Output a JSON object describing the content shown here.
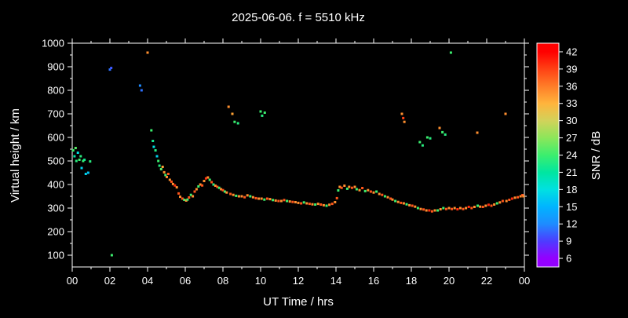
{
  "title": "2025-06-06. f = 5510 kHz",
  "chart_data": {
    "type": "scatter",
    "xlabel": "UT Time / hrs",
    "ylabel": "Virtual height / km",
    "xlim": [
      0,
      24
    ],
    "ylim": [
      50,
      1000
    ],
    "background": "#000000",
    "axis_color": "#ffffff",
    "x_ticks": [
      {
        "v": 0,
        "label": "00"
      },
      {
        "v": 2,
        "label": "02"
      },
      {
        "v": 4,
        "label": "04"
      },
      {
        "v": 6,
        "label": "06"
      },
      {
        "v": 8,
        "label": "08"
      },
      {
        "v": 10,
        "label": "10"
      },
      {
        "v": 12,
        "label": "12"
      },
      {
        "v": 14,
        "label": "14"
      },
      {
        "v": 16,
        "label": "16"
      },
      {
        "v": 18,
        "label": "18"
      },
      {
        "v": 20,
        "label": "20"
      },
      {
        "v": 22,
        "label": "22"
      },
      {
        "v": 24,
        "label": "00"
      }
    ],
    "y_ticks": [
      100,
      200,
      300,
      400,
      500,
      600,
      700,
      800,
      900,
      1000
    ],
    "colorbar": {
      "label": "SNR / dB",
      "min": 4.5,
      "max": 43.5,
      "ticks": [
        6,
        9,
        12,
        15,
        18,
        21,
        24,
        27,
        30,
        33,
        36,
        39,
        42
      ],
      "stops": [
        {
          "v": 6,
          "c": "#9400ff"
        },
        {
          "v": 9,
          "c": "#4d3cff"
        },
        {
          "v": 12,
          "c": "#1e8cff"
        },
        {
          "v": 15,
          "c": "#00b4ff"
        },
        {
          "v": 18,
          "c": "#00e1e1"
        },
        {
          "v": 21,
          "c": "#00e6a0"
        },
        {
          "v": 24,
          "c": "#3cee6e"
        },
        {
          "v": 27,
          "c": "#8ce65a"
        },
        {
          "v": 30,
          "c": "#d2d25a"
        },
        {
          "v": 33,
          "c": "#ffb43c"
        },
        {
          "v": 36,
          "c": "#ff7d28"
        },
        {
          "v": 39,
          "c": "#ff4114"
        },
        {
          "v": 42,
          "c": "#ff0000"
        }
      ]
    },
    "points": [
      [
        0.05,
        545,
        24
      ],
      [
        0.12,
        520,
        21
      ],
      [
        0.18,
        555,
        25
      ],
      [
        0.22,
        500,
        23
      ],
      [
        0.3,
        535,
        18
      ],
      [
        0.38,
        505,
        24
      ],
      [
        0.45,
        520,
        23
      ],
      [
        0.5,
        470,
        17
      ],
      [
        0.58,
        500,
        24
      ],
      [
        0.65,
        505,
        22
      ],
      [
        0.72,
        445,
        17
      ],
      [
        0.85,
        450,
        16
      ],
      [
        0.95,
        498,
        23
      ],
      [
        2.0,
        888,
        11
      ],
      [
        2.07,
        895,
        10
      ],
      [
        2.1,
        100,
        24
      ],
      [
        3.6,
        820,
        12
      ],
      [
        3.68,
        800,
        11
      ],
      [
        4.0,
        960,
        35
      ],
      [
        4.2,
        630,
        24
      ],
      [
        4.28,
        585,
        22
      ],
      [
        4.33,
        560,
        18
      ],
      [
        4.42,
        545,
        23
      ],
      [
        4.5,
        520,
        17
      ],
      [
        4.57,
        500,
        24
      ],
      [
        4.63,
        480,
        23
      ],
      [
        4.72,
        465,
        25
      ],
      [
        4.8,
        475,
        34
      ],
      [
        4.88,
        452,
        35
      ],
      [
        4.95,
        440,
        24
      ],
      [
        5.02,
        432,
        35
      ],
      [
        5.1,
        445,
        38
      ],
      [
        5.18,
        420,
        35
      ],
      [
        5.27,
        412,
        38
      ],
      [
        5.35,
        402,
        35
      ],
      [
        5.45,
        396,
        40
      ],
      [
        5.55,
        388,
        35
      ],
      [
        5.65,
        362,
        38
      ],
      [
        5.73,
        348,
        35
      ],
      [
        5.85,
        340,
        38
      ],
      [
        5.95,
        335,
        24
      ],
      [
        6.05,
        332,
        35
      ],
      [
        6.12,
        336,
        24
      ],
      [
        6.2,
        345,
        38
      ],
      [
        6.3,
        356,
        24
      ],
      [
        6.4,
        350,
        35
      ],
      [
        6.5,
        370,
        38
      ],
      [
        6.6,
        380,
        35
      ],
      [
        6.7,
        392,
        24
      ],
      [
        6.8,
        400,
        35
      ],
      [
        6.9,
        396,
        38
      ],
      [
        7.0,
        415,
        35
      ],
      [
        7.1,
        426,
        40
      ],
      [
        7.2,
        430,
        35
      ],
      [
        7.3,
        420,
        24
      ],
      [
        7.4,
        410,
        38
      ],
      [
        7.5,
        400,
        23
      ],
      [
        7.6,
        395,
        35
      ],
      [
        7.7,
        390,
        38
      ],
      [
        7.8,
        386,
        24
      ],
      [
        7.9,
        380,
        35
      ],
      [
        8.0,
        376,
        38
      ],
      [
        8.1,
        370,
        24
      ],
      [
        8.2,
        366,
        35
      ],
      [
        8.3,
        730,
        35
      ],
      [
        8.4,
        360,
        38
      ],
      [
        8.5,
        700,
        34
      ],
      [
        8.55,
        356,
        35
      ],
      [
        8.62,
        666,
        24
      ],
      [
        8.7,
        352,
        24
      ],
      [
        8.8,
        660,
        23
      ],
      [
        8.85,
        350,
        35
      ],
      [
        9.0,
        350,
        35
      ],
      [
        9.15,
        346,
        38
      ],
      [
        9.3,
        354,
        35
      ],
      [
        9.45,
        350,
        24
      ],
      [
        9.6,
        346,
        35
      ],
      [
        9.75,
        342,
        38
      ],
      [
        9.9,
        340,
        35
      ],
      [
        10.0,
        710,
        24
      ],
      [
        10.08,
        692,
        23
      ],
      [
        10.22,
        705,
        24
      ],
      [
        10.05,
        340,
        35
      ],
      [
        10.2,
        336,
        24
      ],
      [
        10.35,
        340,
        38
      ],
      [
        10.5,
        338,
        35
      ],
      [
        10.65,
        334,
        24
      ],
      [
        10.8,
        332,
        35
      ],
      [
        10.95,
        330,
        38
      ],
      [
        11.1,
        330,
        35
      ],
      [
        11.25,
        334,
        38
      ],
      [
        11.4,
        330,
        24
      ],
      [
        11.55,
        328,
        35
      ],
      [
        11.7,
        326,
        38
      ],
      [
        11.85,
        325,
        35
      ],
      [
        12.0,
        322,
        35
      ],
      [
        12.15,
        320,
        38
      ],
      [
        12.3,
        324,
        24
      ],
      [
        12.45,
        320,
        35
      ],
      [
        12.6,
        318,
        38
      ],
      [
        12.75,
        316,
        35
      ],
      [
        12.9,
        315,
        24
      ],
      [
        13.05,
        318,
        35
      ],
      [
        13.2,
        315,
        38
      ],
      [
        13.35,
        312,
        35
      ],
      [
        13.5,
        310,
        24
      ],
      [
        13.65,
        314,
        35
      ],
      [
        13.8,
        318,
        38
      ],
      [
        13.95,
        325,
        35
      ],
      [
        14.05,
        342,
        38
      ],
      [
        14.12,
        375,
        24
      ],
      [
        14.2,
        390,
        35
      ],
      [
        14.3,
        386,
        38
      ],
      [
        14.45,
        395,
        35
      ],
      [
        14.6,
        382,
        24
      ],
      [
        14.7,
        390,
        35
      ],
      [
        14.85,
        386,
        38
      ],
      [
        15.0,
        390,
        35
      ],
      [
        15.1,
        380,
        24
      ],
      [
        15.25,
        376,
        35
      ],
      [
        15.4,
        385,
        38
      ],
      [
        15.55,
        372,
        24
      ],
      [
        15.7,
        376,
        35
      ],
      [
        15.85,
        370,
        38
      ],
      [
        16.0,
        366,
        35
      ],
      [
        16.15,
        370,
        24
      ],
      [
        16.3,
        360,
        35
      ],
      [
        16.45,
        356,
        38
      ],
      [
        16.6,
        350,
        24
      ],
      [
        16.75,
        346,
        35
      ],
      [
        16.9,
        340,
        38
      ],
      [
        17.0,
        336,
        35
      ],
      [
        17.15,
        330,
        24
      ],
      [
        17.3,
        326,
        35
      ],
      [
        17.45,
        322,
        38
      ],
      [
        17.5,
        700,
        35
      ],
      [
        17.57,
        682,
        39
      ],
      [
        17.63,
        666,
        35
      ],
      [
        17.6,
        320,
        35
      ],
      [
        17.75,
        316,
        24
      ],
      [
        17.9,
        312,
        35
      ],
      [
        18.05,
        310,
        38
      ],
      [
        18.2,
        306,
        35
      ],
      [
        18.35,
        300,
        24
      ],
      [
        18.45,
        580,
        24
      ],
      [
        18.5,
        296,
        35
      ],
      [
        18.6,
        566,
        23
      ],
      [
        18.65,
        294,
        38
      ],
      [
        18.8,
        290,
        35
      ],
      [
        18.85,
        600,
        24
      ],
      [
        18.95,
        290,
        40
      ],
      [
        19.0,
        596,
        23
      ],
      [
        19.1,
        286,
        38
      ],
      [
        19.25,
        290,
        35
      ],
      [
        19.4,
        290,
        24
      ],
      [
        19.5,
        640,
        35
      ],
      [
        19.55,
        295,
        35
      ],
      [
        19.65,
        622,
        24
      ],
      [
        19.7,
        300,
        24
      ],
      [
        19.8,
        612,
        23
      ],
      [
        19.85,
        296,
        38
      ],
      [
        20.0,
        300,
        35
      ],
      [
        20.1,
        960,
        24
      ],
      [
        20.15,
        296,
        38
      ],
      [
        20.3,
        300,
        35
      ],
      [
        20.45,
        295,
        40
      ],
      [
        20.6,
        300,
        35
      ],
      [
        20.75,
        296,
        38
      ],
      [
        20.9,
        300,
        35
      ],
      [
        21.05,
        305,
        40
      ],
      [
        21.2,
        300,
        38
      ],
      [
        21.35,
        305,
        35
      ],
      [
        21.5,
        620,
        35
      ],
      [
        21.52,
        310,
        24
      ],
      [
        21.65,
        306,
        35
      ],
      [
        21.8,
        305,
        38
      ],
      [
        21.95,
        310,
        35
      ],
      [
        22.1,
        314,
        40
      ],
      [
        22.25,
        310,
        38
      ],
      [
        22.4,
        315,
        35
      ],
      [
        22.55,
        320,
        24
      ],
      [
        22.7,
        324,
        35
      ],
      [
        22.85,
        330,
        38
      ],
      [
        23.0,
        700,
        35
      ],
      [
        23.05,
        330,
        35
      ],
      [
        23.2,
        335,
        38
      ],
      [
        23.35,
        340,
        40
      ],
      [
        23.5,
        344,
        35
      ],
      [
        23.65,
        346,
        38
      ],
      [
        23.8,
        350,
        35
      ],
      [
        23.9,
        355,
        38
      ],
      [
        23.95,
        350,
        35
      ]
    ]
  }
}
